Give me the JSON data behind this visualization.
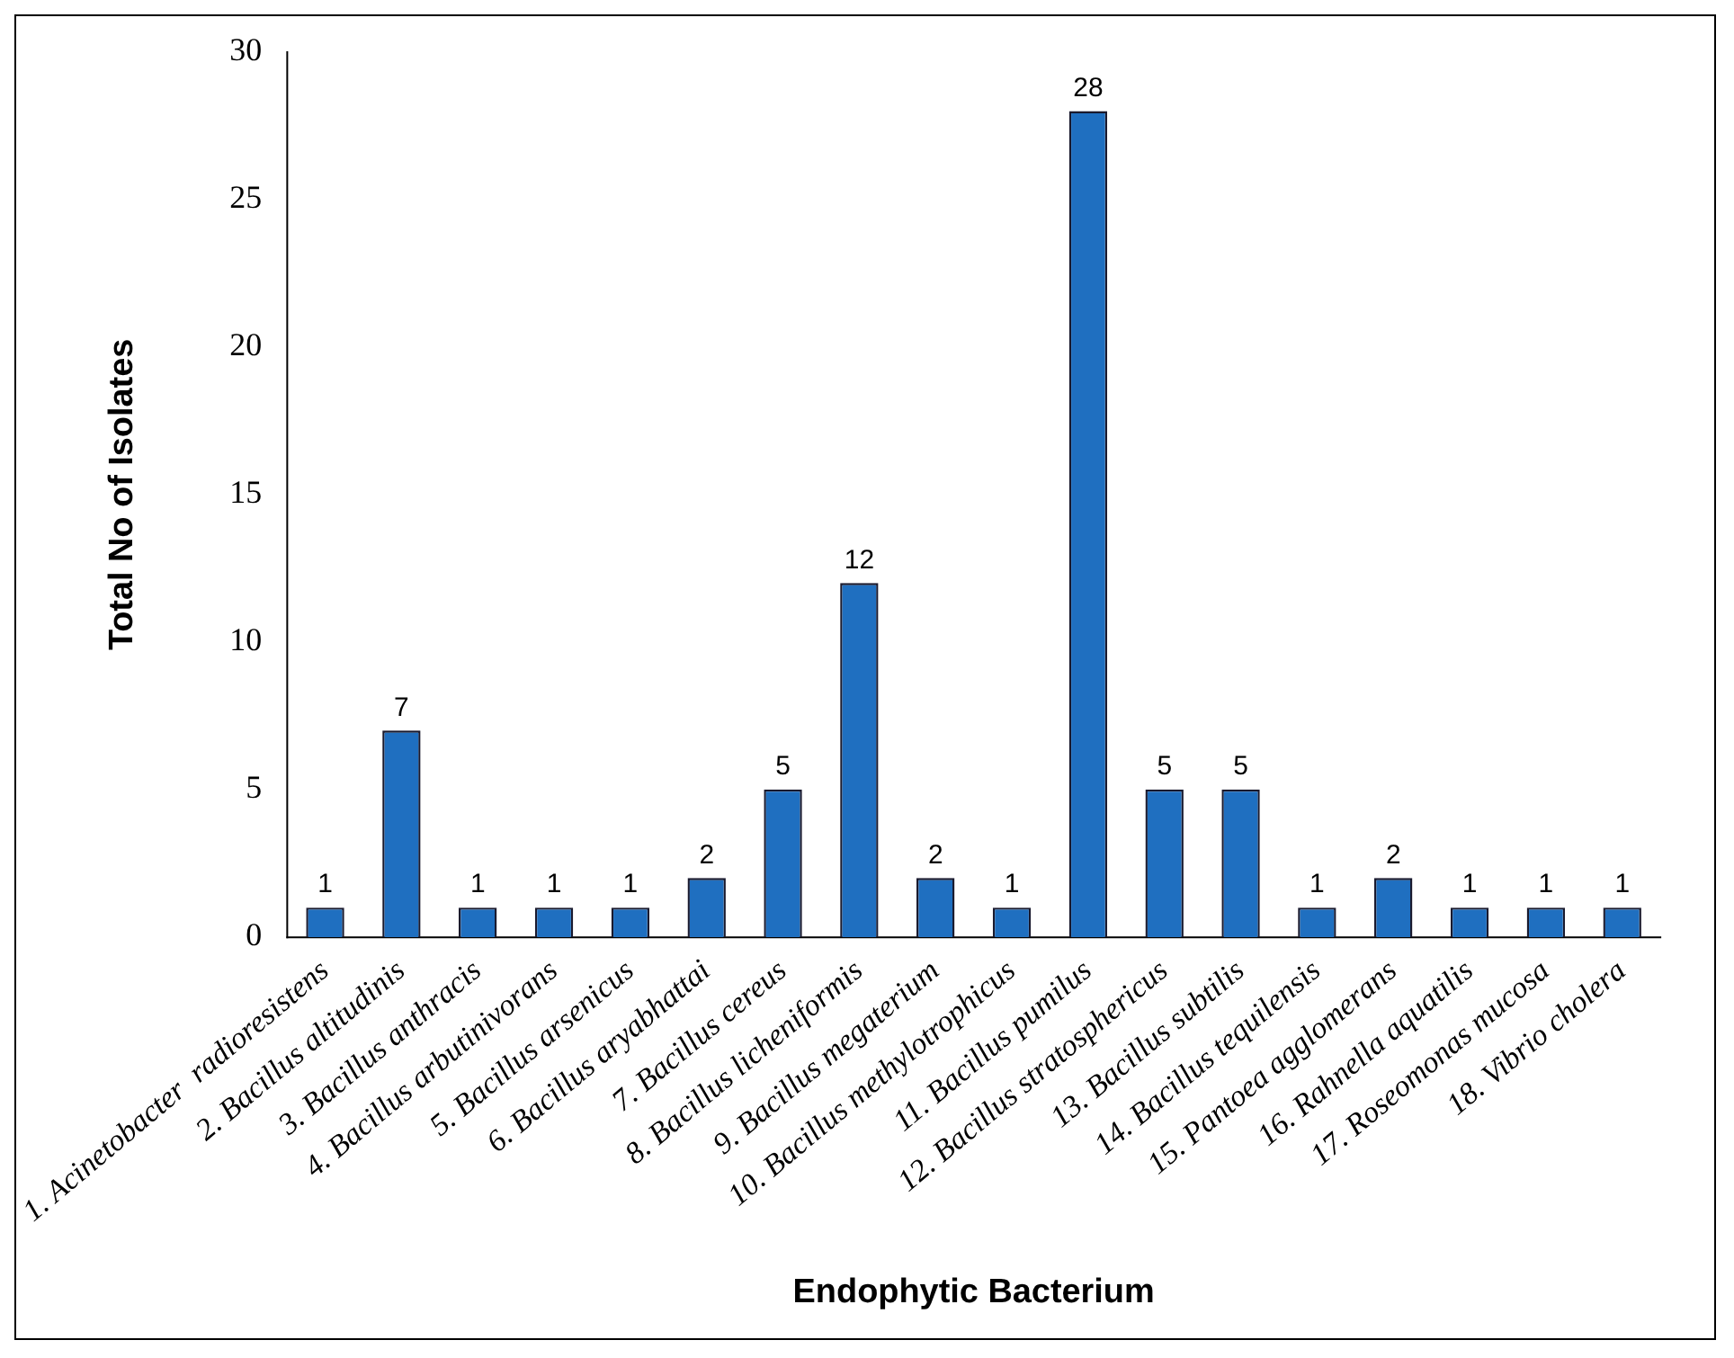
{
  "chart_data": {
    "type": "bar",
    "xlabel": "Endophytic Bacterium",
    "ylabel": "Total No of Isolates",
    "categories": [
      "1. Acinetobacter  radioresistens",
      "2. Bacillus altitudinis",
      "3. Bacillus anthracis",
      "4. Bacillus arbutinivorans",
      "5. Bacillus arsenicus",
      "6. Bacillus aryabhattai",
      "7. Bacillus cereus",
      "8. Bacillus licheniformis",
      "9. Bacillus megaterium",
      "10. Bacillus methylotrophicus",
      "11. Bacillus pumilus",
      "12. Bacillus stratosphericus",
      "13. Bacillus subtilis",
      "14. Bacillus tequilensis",
      "15. Pantoea agglomerans",
      "16. Rahnella aquatilis",
      "17. Roseomonas mucosa",
      "18. Vibrio cholera"
    ],
    "values": [
      1,
      7,
      1,
      1,
      1,
      2,
      5,
      12,
      2,
      1,
      28,
      5,
      5,
      1,
      2,
      1,
      1,
      1
    ],
    "color": "#1f6fc0",
    "ylim": [
      0,
      30
    ],
    "yticks": [
      0,
      5,
      10,
      15,
      20,
      25,
      30
    ],
    "grid": false,
    "legend": false,
    "data_labels": true
  }
}
